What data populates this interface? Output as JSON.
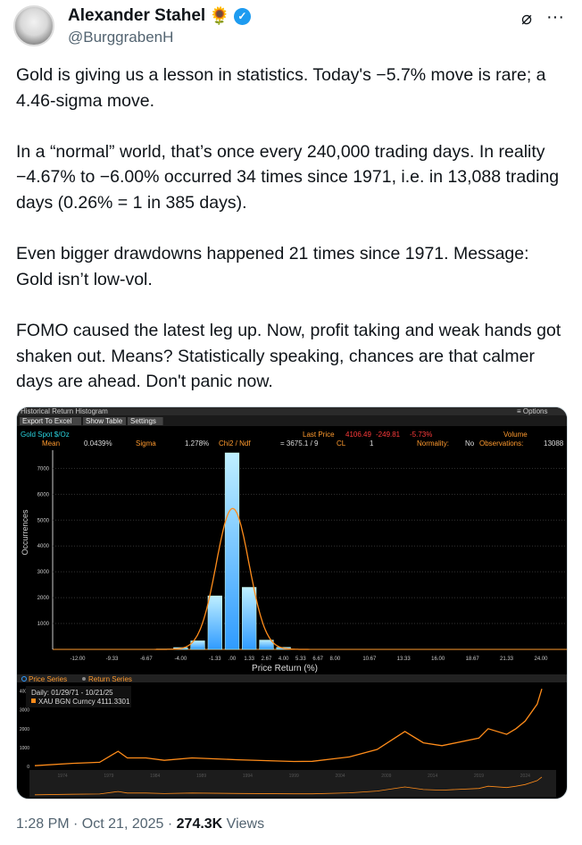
{
  "author": {
    "name": "Alexander Stahel",
    "emoji": "🌻",
    "handle": "@BurggrabenH",
    "verified": true
  },
  "header_icons": [
    "grok-icon",
    "more-icon"
  ],
  "tweet": {
    "paragraphs": [
      "Gold is giving us a lesson in statistics. Today's −5.7% move is rare; a 4.46-sigma move.",
      "In a “normal” world, that’s once every 240,000 trading days. In reality −4.67% to −6.00% occurred 34 times since 1971, i.e. in 13,088 trading days (0.26% = 1 in 385 days).",
      "Even bigger drawdowns happened 21 times since 1971. Message: Gold isn’t low-vol.",
      "FOMO caused the latest leg up. Now, profit taking and weak hands got shaken out. Means? Statistically speaking, chances are that calmer days are ahead. Don't panic now."
    ]
  },
  "media": {
    "window_title": "Historical Return Histogram",
    "options": "≡ Options",
    "buttons": [
      "Export To Excel",
      "Show Table",
      "Settings"
    ],
    "security": "Gold Spot  $/Oz",
    "last_price_label": "Last Price",
    "last_price": "4106.49",
    "change": "-249.81",
    "change_pct": "-5.73%",
    "volume_label": "Volume",
    "stats": {
      "mean_label": "Mean",
      "mean": "0.0439%",
      "sigma_label": "Sigma",
      "sigma": "1.278%",
      "chi_label": "Chi2 / Ndf",
      "chi": "= 3675.1 /   9",
      "cl_label": "CL",
      "cl": "1",
      "normality_label": "Normality:",
      "normality": "No",
      "obs_label": "Observations:",
      "obs": "13088"
    },
    "series_tabs": [
      "Price Series",
      "Return Series"
    ],
    "legend_dates": "Daily: 01/29/71 - 10/21/25",
    "legend_series": "XAU BGN Curncy 4111.3301",
    "colors": {
      "bar": "#2f9bff",
      "fit": "#ff8c1a",
      "price": "#ff8c1a",
      "label": "#ff9a2e"
    }
  },
  "chart_data": [
    {
      "type": "bar",
      "title": "",
      "xlabel": "Price Return (%)",
      "ylabel": "Occurrences",
      "x_ticks": [
        "-12.00",
        "-9.33",
        "-6.67",
        "-4.00",
        "-1.33",
        ".00",
        "1.33",
        "2.67",
        "4.00",
        "5.33",
        "6.67",
        "8.00",
        "10.67",
        "13.33",
        "16.00",
        "18.67",
        "21.33",
        "24.00"
      ],
      "y_ticks": [
        "1000",
        "2000",
        "3000",
        "4000",
        "5000",
        "6000",
        "7000"
      ],
      "xlim": [
        -14,
        28
      ],
      "ylim": [
        0,
        7600
      ],
      "grid": true,
      "categories": [
        -5.33,
        -4.0,
        -2.67,
        -1.33,
        0.0,
        1.33,
        2.67,
        4.0,
        5.33
      ],
      "values": [
        15,
        70,
        330,
        2070,
        7600,
        2400,
        360,
        80,
        10
      ],
      "fit": {
        "type": "normal",
        "mean": 0.0439,
        "sigma": 1.278,
        "peak": 5450
      }
    },
    {
      "type": "line",
      "x_ticks": [
        "1974",
        "1979",
        "1984",
        "1989",
        "1994",
        "1999",
        "2004",
        "2009",
        "2014",
        "2019",
        "2024"
      ],
      "y_ticks": [
        "0",
        "1000",
        "2000",
        "3000",
        "4000"
      ],
      "ylim": [
        0,
        4500
      ],
      "series": [
        {
          "name": "XAU BGN Curncy",
          "x": [
            1971,
            1975,
            1978,
            1980,
            1981,
            1983,
            1985,
            1988,
            1993,
            1999,
            2001,
            2005,
            2008,
            2011,
            2013,
            2015,
            2019,
            2020,
            2022,
            2023,
            2024,
            2025.3,
            2025.8
          ],
          "y": [
            39,
            160,
            220,
            800,
            450,
            450,
            320,
            450,
            350,
            260,
            270,
            500,
            900,
            1850,
            1250,
            1100,
            1500,
            2000,
            1700,
            2000,
            2400,
            3300,
            4111
          ]
        }
      ]
    }
  ],
  "footer": {
    "time": "1:28 PM · Oct 21, 2025 · ",
    "views": "274.3K",
    "views_label": " Views"
  }
}
